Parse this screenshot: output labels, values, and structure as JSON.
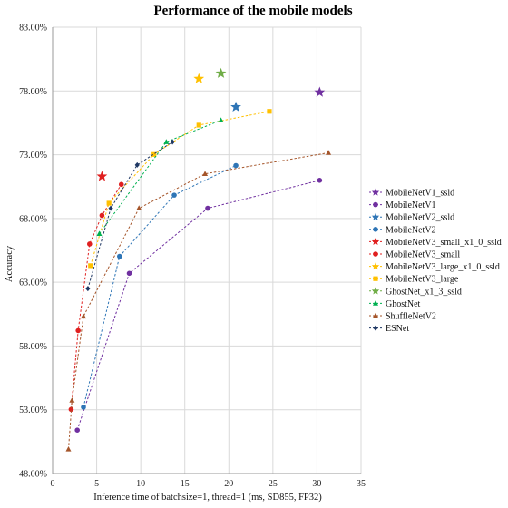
{
  "chart_data": {
    "type": "scatter",
    "title": "Performance of the mobile models",
    "xlabel": "Inference time of batchsize=1, thread=1 (ms, SD855, FP32)",
    "ylabel": "Accuracy",
    "xlim": [
      0,
      35
    ],
    "ylim": [
      48,
      83
    ],
    "xticks": [
      "0",
      "5",
      "10",
      "15",
      "20",
      "25",
      "30",
      "35"
    ],
    "yticks": [
      "48.00%",
      "53.00%",
      "58.00%",
      "63.00%",
      "68.00%",
      "73.00%",
      "78.00%",
      "83.00%"
    ],
    "grid": true,
    "legend_position": "right",
    "series": [
      {
        "name": "MobileNetV1_ssld",
        "color": "#7030a0",
        "marker": "star",
        "line": false,
        "points": [
          [
            30.3,
            77.9
          ]
        ]
      },
      {
        "name": "MobileNetV1",
        "color": "#7030a0",
        "marker": "circle",
        "line": true,
        "points": [
          [
            2.8,
            51.4
          ],
          [
            8.7,
            63.7
          ],
          [
            17.6,
            68.8
          ],
          [
            30.3,
            70.99
          ]
        ]
      },
      {
        "name": "MobileNetV2_ssld",
        "color": "#2e75b6",
        "marker": "star",
        "line": false,
        "points": [
          [
            20.8,
            76.74
          ]
        ]
      },
      {
        "name": "MobileNetV2",
        "color": "#2e75b6",
        "marker": "circle",
        "line": true,
        "points": [
          [
            3.5,
            53.2
          ],
          [
            7.6,
            65.03
          ],
          [
            13.8,
            69.83
          ],
          [
            20.8,
            72.15
          ]
        ]
      },
      {
        "name": "MobileNetV3_small_x1_0_ssld",
        "color": "#e02020",
        "marker": "star",
        "line": false,
        "points": [
          [
            5.6,
            71.3
          ]
        ]
      },
      {
        "name": "MobileNetV3_small",
        "color": "#e02020",
        "marker": "circle",
        "line": true,
        "points": [
          [
            2.1,
            53.03
          ],
          [
            2.9,
            59.21
          ],
          [
            4.2,
            66.0
          ],
          [
            5.6,
            68.24
          ],
          [
            7.8,
            70.67
          ]
        ]
      },
      {
        "name": "MobileNetV3_large_x1_0_ssld",
        "color": "#ffc000",
        "marker": "star",
        "line": false,
        "points": [
          [
            16.6,
            78.96
          ]
        ]
      },
      {
        "name": "MobileNetV3_large",
        "color": "#ffc000",
        "marker": "square",
        "line": true,
        "points": [
          [
            4.3,
            64.3
          ],
          [
            6.4,
            69.2
          ],
          [
            11.5,
            73.02
          ],
          [
            16.6,
            75.32
          ],
          [
            24.6,
            76.4
          ]
        ]
      },
      {
        "name": "GhostNet_x1_3_ssld",
        "color": "#70ad47",
        "marker": "star",
        "line": false,
        "points": [
          [
            19.1,
            79.38
          ]
        ]
      },
      {
        "name": "GhostNet",
        "color": "#00b050",
        "marker": "triangle",
        "line": true,
        "points": [
          [
            5.3,
            66.8
          ],
          [
            12.9,
            74.0
          ],
          [
            19.1,
            75.7
          ]
        ]
      },
      {
        "name": "ShuffleNetV2",
        "color": "#a5552a",
        "marker": "triangle",
        "line": true,
        "points": [
          [
            1.8,
            49.9
          ],
          [
            2.2,
            53.73
          ],
          [
            3.5,
            60.32
          ],
          [
            9.8,
            68.8
          ],
          [
            17.3,
            71.5
          ],
          [
            31.3,
            73.15
          ]
        ]
      },
      {
        "name": "ESNet",
        "color": "#1f3864",
        "marker": "diamond",
        "line": true,
        "points": [
          [
            4.0,
            62.5
          ],
          [
            6.6,
            68.8
          ],
          [
            9.6,
            72.2
          ],
          [
            13.6,
            74.0
          ]
        ]
      }
    ]
  }
}
